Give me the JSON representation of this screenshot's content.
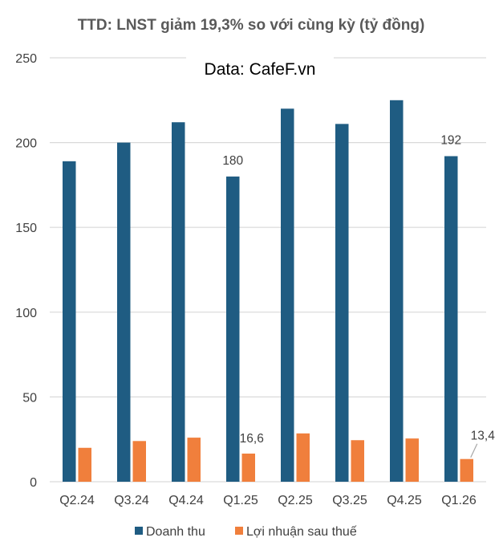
{
  "chart_data": {
    "type": "bar",
    "title": "TTD: LNST giảm 19,3% so với cùng kỳ (tỷ đồng)",
    "subtitle": "Data: CafeF.vn",
    "categories": [
      "Q2.24",
      "Q3.24",
      "Q4.24",
      "Q1.25",
      "Q2.25",
      "Q3.25",
      "Q4.25",
      "Q1.26"
    ],
    "series": [
      {
        "name": "Doanh thu",
        "color": "#1f5c82",
        "values": [
          189,
          200,
          212,
          180,
          220,
          211,
          225,
          192
        ]
      },
      {
        "name": "Lợi nhuận sau thuế",
        "color": "#f07f3c",
        "values": [
          20,
          24,
          26,
          16.6,
          28.5,
          24.5,
          25.5,
          13.4
        ]
      }
    ],
    "ylim": [
      0,
      250
    ],
    "yticks": [
      "0",
      "50",
      "100",
      "150",
      "200",
      "250"
    ],
    "data_labels": [
      {
        "series": 0,
        "index": 3,
        "text": "180"
      },
      {
        "series": 0,
        "index": 7,
        "text": "192"
      },
      {
        "series": 1,
        "index": 3,
        "text": "16,6"
      },
      {
        "series": 1,
        "index": 7,
        "text": "13,4"
      }
    ],
    "grid": true,
    "legend": "bottom"
  }
}
